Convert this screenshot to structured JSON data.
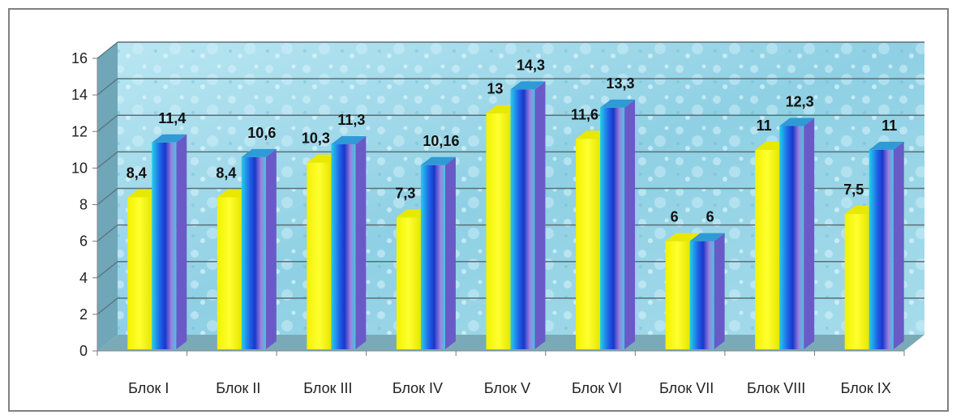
{
  "chart_data": {
    "type": "bar",
    "bar_style": "3d-clustered-column",
    "categories": [
      "Блок I",
      "Блок II",
      "Блок III",
      "Блок IV",
      "Блок V",
      "Блок VI",
      "Блок VII",
      "Блок VIII",
      "Блок IX"
    ],
    "series": [
      {
        "color": "#ffff00",
        "values": [
          8.4,
          8.4,
          10.3,
          7.3,
          13,
          11.6,
          6,
          11,
          7.5
        ],
        "labels": [
          "8,4",
          "8,4",
          "10,3",
          "7,3",
          "13",
          "11,6",
          "6",
          "11",
          "7,5"
        ]
      },
      {
        "color": "#3fa0e0",
        "values": [
          11.4,
          10.6,
          11.3,
          10.16,
          14.3,
          13.3,
          6,
          12.3,
          11
        ],
        "labels": [
          "11,4",
          "10,6",
          "11,3",
          "10,16",
          "14,3",
          "13,3",
          "6",
          "12,3",
          "11"
        ]
      }
    ],
    "title": "",
    "xlabel": "",
    "ylabel": "",
    "ylim": [
      0,
      16
    ],
    "yticks": [
      0,
      2,
      4,
      6,
      8,
      10,
      12,
      14,
      16
    ],
    "grid": true,
    "legend": "none",
    "wall_color": "#9fd8e8",
    "floor_color": "#7aaab8"
  }
}
